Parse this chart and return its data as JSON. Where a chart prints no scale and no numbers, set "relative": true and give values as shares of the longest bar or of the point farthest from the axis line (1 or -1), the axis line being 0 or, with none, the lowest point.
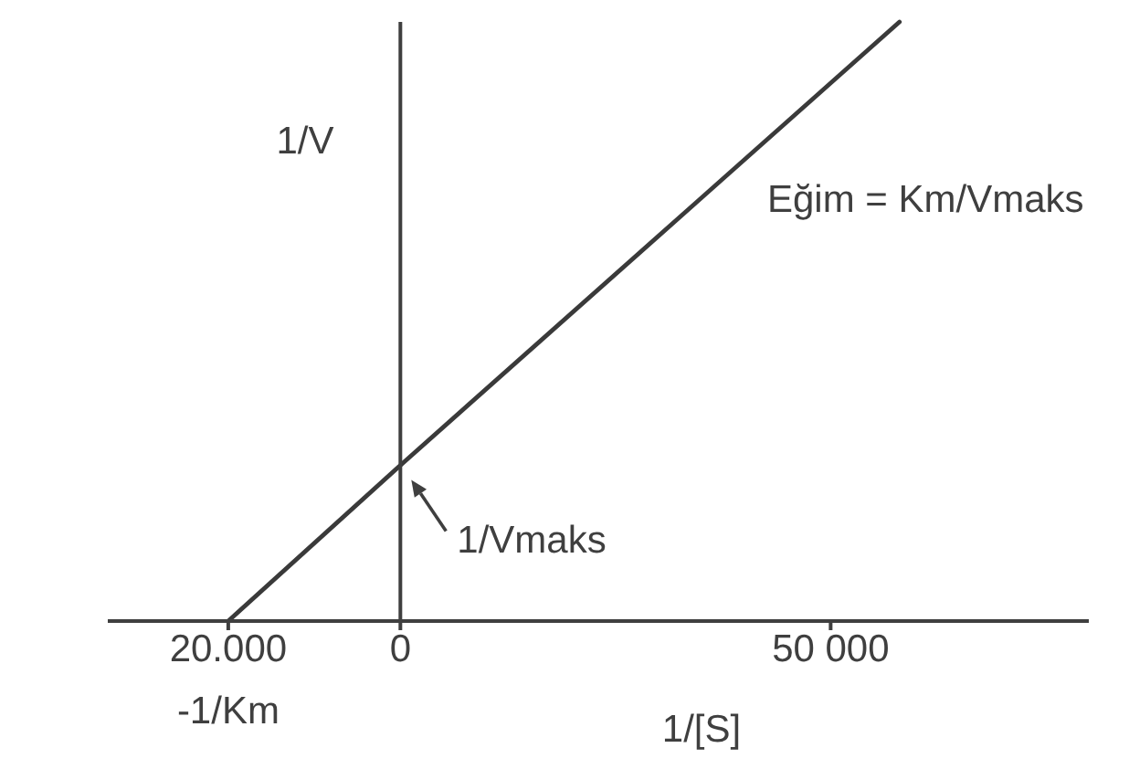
{
  "chart_data": {
    "type": "line",
    "xlabel": "1/[S]",
    "ylabel": "1/V",
    "x": [
      -20000,
      0,
      58000
    ],
    "values": [
      0,
      0.26,
      1
    ],
    "relative": true,
    "color": "#3a3a3a",
    "xlim": [
      -34000,
      80000
    ],
    "xticks": [
      {
        "value": -20000,
        "label": "20.000"
      },
      0,
      {
        "value": 50000,
        "label": "50 000"
      }
    ],
    "annotations": [
      {
        "text": "1/Vmaks",
        "x": 0,
        "y": 0.26
      },
      {
        "text": "-1/Km",
        "x": -20000,
        "y": 0
      },
      "Eğim = Km/Vmaks"
    ]
  }
}
